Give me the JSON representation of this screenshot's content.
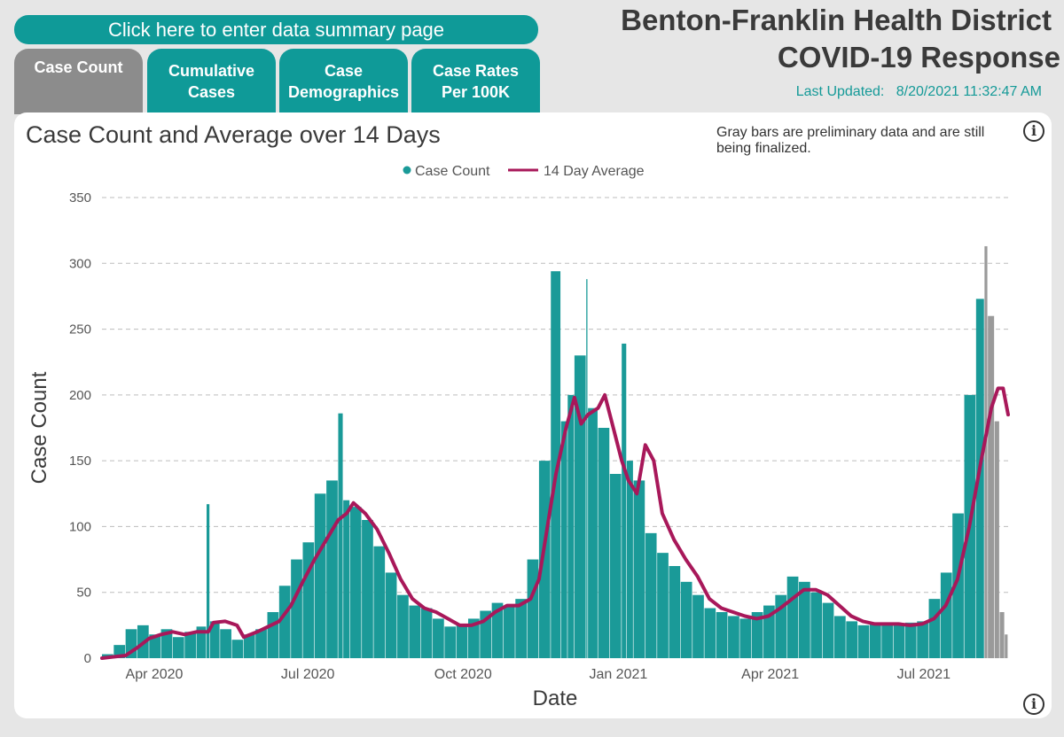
{
  "nav": {
    "summary_button": "Click here to enter data summary page",
    "tabs": [
      "Case Count",
      "Cumulative\nCases",
      "Case\nDemographics",
      "Case Rates\nPer 100K"
    ]
  },
  "header": {
    "title_line1": "Benton-Franklin Health District",
    "title_line2": "COVID-19 Response",
    "last_updated_label": "Last Updated:",
    "last_updated_value": "8/20/2021 11:32:47 AM"
  },
  "note": "Gray bars are preliminary data and are still being finalized.",
  "info_icon_glyph": "i",
  "colors": {
    "bar": "#1a9a98",
    "preliminary_bar": "#9a9a9a",
    "average_line": "#a8185a"
  },
  "chart_data": {
    "type": "bar",
    "title": "Case Count and Average over 14 Days",
    "xlabel": "Date",
    "ylabel": "Case Count",
    "ylim": [
      0,
      350
    ],
    "yticks": [
      0,
      50,
      100,
      150,
      200,
      250,
      300,
      350
    ],
    "x_range": [
      "2020-03-01",
      "2021-08-20"
    ],
    "xticks": [
      {
        "date": "2020-04-01",
        "label": "Apr 2020"
      },
      {
        "date": "2020-07-01",
        "label": "Jul 2020"
      },
      {
        "date": "2020-10-01",
        "label": "Oct 2020"
      },
      {
        "date": "2021-01-01",
        "label": "Jan 2021"
      },
      {
        "date": "2021-04-01",
        "label": "Apr 2021"
      },
      {
        "date": "2021-07-01",
        "label": "Jul 2021"
      }
    ],
    "grid": "horizontal-dashed",
    "legend": {
      "position": "top-center",
      "items": [
        "Case Count",
        "14 Day Average"
      ]
    },
    "preliminary_from": "2021-08-07",
    "series": [
      {
        "name": "Case Count",
        "kind": "bar",
        "points": [
          [
            "2020-03-01",
            0
          ],
          [
            "2020-03-08",
            3
          ],
          [
            "2020-03-15",
            10
          ],
          [
            "2020-03-22",
            22
          ],
          [
            "2020-03-29",
            25
          ],
          [
            "2020-04-05",
            18
          ],
          [
            "2020-04-12",
            22
          ],
          [
            "2020-04-19",
            16
          ],
          [
            "2020-04-26",
            20
          ],
          [
            "2020-05-02",
            24
          ],
          [
            "2020-05-04",
            117
          ],
          [
            "2020-05-10",
            28
          ],
          [
            "2020-05-17",
            22
          ],
          [
            "2020-05-24",
            14
          ],
          [
            "2020-05-31",
            18
          ],
          [
            "2020-06-07",
            22
          ],
          [
            "2020-06-14",
            35
          ],
          [
            "2020-06-21",
            55
          ],
          [
            "2020-06-28",
            75
          ],
          [
            "2020-07-05",
            88
          ],
          [
            "2020-07-12",
            125
          ],
          [
            "2020-07-19",
            135
          ],
          [
            "2020-07-22",
            186
          ],
          [
            "2020-07-26",
            120
          ],
          [
            "2020-08-02",
            115
          ],
          [
            "2020-08-09",
            105
          ],
          [
            "2020-08-16",
            85
          ],
          [
            "2020-08-23",
            65
          ],
          [
            "2020-08-30",
            48
          ],
          [
            "2020-09-06",
            40
          ],
          [
            "2020-09-13",
            38
          ],
          [
            "2020-09-20",
            30
          ],
          [
            "2020-09-27",
            24
          ],
          [
            "2020-10-04",
            26
          ],
          [
            "2020-10-11",
            30
          ],
          [
            "2020-10-18",
            36
          ],
          [
            "2020-10-25",
            42
          ],
          [
            "2020-11-01",
            40
          ],
          [
            "2020-11-08",
            45
          ],
          [
            "2020-11-15",
            75
          ],
          [
            "2020-11-22",
            150
          ],
          [
            "2020-11-28",
            294
          ],
          [
            "2020-12-02",
            180
          ],
          [
            "2020-12-06",
            200
          ],
          [
            "2020-12-13",
            230
          ],
          [
            "2020-12-14",
            288
          ],
          [
            "2020-12-20",
            190
          ],
          [
            "2020-12-27",
            175
          ],
          [
            "2021-01-03",
            140
          ],
          [
            "2021-01-06",
            239
          ],
          [
            "2021-01-10",
            150
          ],
          [
            "2021-01-17",
            135
          ],
          [
            "2021-01-24",
            95
          ],
          [
            "2021-01-31",
            80
          ],
          [
            "2021-02-07",
            70
          ],
          [
            "2021-02-14",
            58
          ],
          [
            "2021-02-21",
            48
          ],
          [
            "2021-02-28",
            38
          ],
          [
            "2021-03-07",
            35
          ],
          [
            "2021-03-14",
            32
          ],
          [
            "2021-03-21",
            30
          ],
          [
            "2021-03-28",
            35
          ],
          [
            "2021-04-04",
            40
          ],
          [
            "2021-04-11",
            48
          ],
          [
            "2021-04-18",
            62
          ],
          [
            "2021-04-25",
            58
          ],
          [
            "2021-05-02",
            50
          ],
          [
            "2021-05-09",
            42
          ],
          [
            "2021-05-16",
            32
          ],
          [
            "2021-05-23",
            28
          ],
          [
            "2021-05-30",
            25
          ],
          [
            "2021-06-06",
            26
          ],
          [
            "2021-06-13",
            25
          ],
          [
            "2021-06-20",
            26
          ],
          [
            "2021-06-27",
            27
          ],
          [
            "2021-07-04",
            28
          ],
          [
            "2021-07-11",
            45
          ],
          [
            "2021-07-18",
            65
          ],
          [
            "2021-07-25",
            110
          ],
          [
            "2021-08-01",
            200
          ],
          [
            "2021-08-06",
            273
          ],
          [
            "2021-08-08",
            313
          ],
          [
            "2021-08-12",
            260
          ],
          [
            "2021-08-15",
            180
          ],
          [
            "2021-08-18",
            35
          ],
          [
            "2021-08-20",
            18
          ]
        ]
      },
      {
        "name": "14 Day Average",
        "kind": "line",
        "points": [
          [
            "2020-03-01",
            0
          ],
          [
            "2020-03-15",
            2
          ],
          [
            "2020-03-22",
            8
          ],
          [
            "2020-03-29",
            15
          ],
          [
            "2020-04-05",
            18
          ],
          [
            "2020-04-12",
            20
          ],
          [
            "2020-04-19",
            18
          ],
          [
            "2020-04-26",
            20
          ],
          [
            "2020-05-03",
            20
          ],
          [
            "2020-05-06",
            27
          ],
          [
            "2020-05-13",
            28
          ],
          [
            "2020-05-20",
            25
          ],
          [
            "2020-05-24",
            16
          ],
          [
            "2020-06-01",
            20
          ],
          [
            "2020-06-14",
            28
          ],
          [
            "2020-06-21",
            40
          ],
          [
            "2020-06-28",
            58
          ],
          [
            "2020-07-05",
            75
          ],
          [
            "2020-07-12",
            90
          ],
          [
            "2020-07-19",
            105
          ],
          [
            "2020-07-24",
            110
          ],
          [
            "2020-07-28",
            118
          ],
          [
            "2020-08-04",
            110
          ],
          [
            "2020-08-11",
            98
          ],
          [
            "2020-08-18",
            80
          ],
          [
            "2020-08-25",
            60
          ],
          [
            "2020-09-01",
            45
          ],
          [
            "2020-09-08",
            38
          ],
          [
            "2020-09-15",
            35
          ],
          [
            "2020-09-22",
            30
          ],
          [
            "2020-09-29",
            25
          ],
          [
            "2020-10-06",
            25
          ],
          [
            "2020-10-13",
            28
          ],
          [
            "2020-10-20",
            35
          ],
          [
            "2020-10-27",
            40
          ],
          [
            "2020-11-03",
            40
          ],
          [
            "2020-11-10",
            45
          ],
          [
            "2020-11-15",
            60
          ],
          [
            "2020-11-20",
            100
          ],
          [
            "2020-11-25",
            140
          ],
          [
            "2020-12-01",
            175
          ],
          [
            "2020-12-06",
            198
          ],
          [
            "2020-12-10",
            178
          ],
          [
            "2020-12-14",
            185
          ],
          [
            "2020-12-20",
            190
          ],
          [
            "2020-12-24",
            200
          ],
          [
            "2020-12-28",
            180
          ],
          [
            "2021-01-03",
            150
          ],
          [
            "2021-01-07",
            135
          ],
          [
            "2021-01-12",
            125
          ],
          [
            "2021-01-17",
            162
          ],
          [
            "2021-01-22",
            150
          ],
          [
            "2021-01-27",
            110
          ],
          [
            "2021-02-03",
            90
          ],
          [
            "2021-02-10",
            75
          ],
          [
            "2021-02-17",
            62
          ],
          [
            "2021-02-24",
            45
          ],
          [
            "2021-03-03",
            38
          ],
          [
            "2021-03-10",
            35
          ],
          [
            "2021-03-17",
            32
          ],
          [
            "2021-03-24",
            30
          ],
          [
            "2021-03-31",
            32
          ],
          [
            "2021-04-07",
            38
          ],
          [
            "2021-04-14",
            45
          ],
          [
            "2021-04-21",
            52
          ],
          [
            "2021-04-28",
            52
          ],
          [
            "2021-05-05",
            48
          ],
          [
            "2021-05-12",
            40
          ],
          [
            "2021-05-19",
            32
          ],
          [
            "2021-05-26",
            28
          ],
          [
            "2021-06-02",
            26
          ],
          [
            "2021-06-09",
            26
          ],
          [
            "2021-06-16",
            26
          ],
          [
            "2021-06-23",
            25
          ],
          [
            "2021-06-30",
            26
          ],
          [
            "2021-07-07",
            30
          ],
          [
            "2021-07-14",
            40
          ],
          [
            "2021-07-21",
            60
          ],
          [
            "2021-07-28",
            100
          ],
          [
            "2021-08-04",
            150
          ],
          [
            "2021-08-10",
            190
          ],
          [
            "2021-08-14",
            205
          ],
          [
            "2021-08-17",
            205
          ],
          [
            "2021-08-20",
            185
          ]
        ]
      }
    ]
  }
}
